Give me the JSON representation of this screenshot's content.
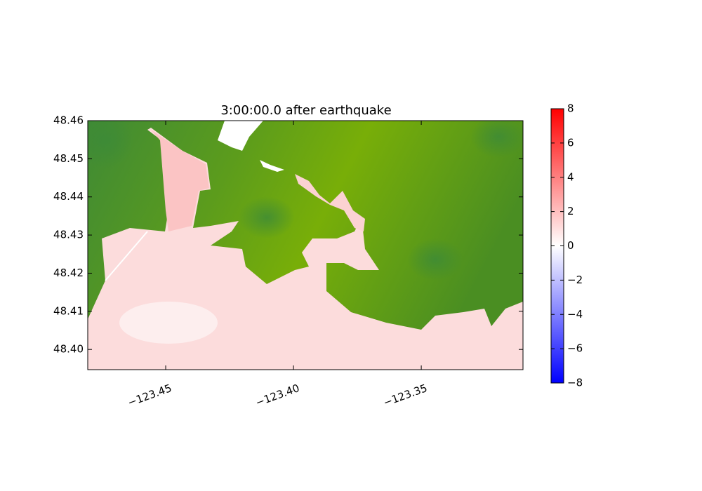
{
  "chart_data": {
    "type": "image",
    "title": "3:00:00.0 after earthquake",
    "xlim": [
      -123.4805,
      -123.3102
    ],
    "ylim": [
      48.3947,
      48.46
    ],
    "xticks": [
      {
        "value": -123.45,
        "label": "−123.45"
      },
      {
        "value": -123.4,
        "label": "−123.40"
      },
      {
        "value": -123.35,
        "label": "−123.35"
      }
    ],
    "yticks": [
      {
        "value": 48.4,
        "label": "48.40"
      },
      48.41,
      48.42,
      48.43,
      48.44,
      48.45,
      48.46
    ],
    "colorbar": {
      "lim": [
        -8,
        8
      ],
      "ticks": [
        {
          "value": -8,
          "label": "−8"
        },
        {
          "value": -6,
          "label": "−6"
        },
        {
          "value": -4,
          "label": "−4"
        },
        {
          "value": -2,
          "label": "−2"
        },
        0,
        2,
        4,
        6,
        8
      ],
      "colors": [
        "#0000ff",
        "#ffffff",
        "#ff0000"
      ]
    }
  }
}
